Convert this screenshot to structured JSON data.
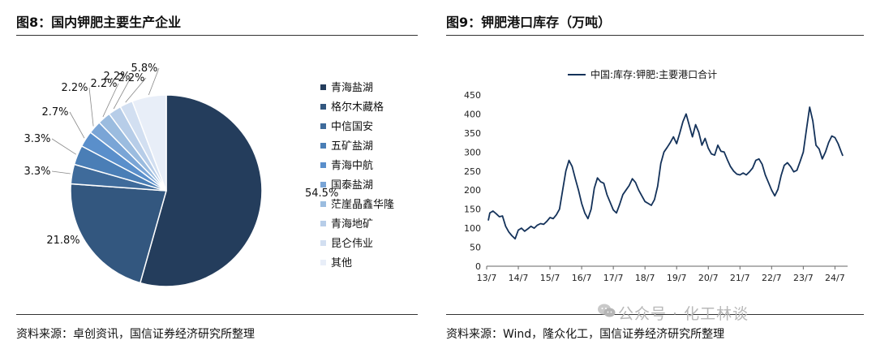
{
  "left": {
    "title": "图8：国内钾肥主要生产企业",
    "source": "资料来源：卓创资讯，国信证券经济研究所整理"
  },
  "right": {
    "title": "图9：钾肥港口库存（万吨）",
    "source": "资料来源：Wind，隆众化工，国信证券经济研究所整理"
  },
  "watermark": "公众号 · 化工林谈",
  "chart_data": [
    {
      "type": "pie",
      "title": "国内钾肥主要生产企业",
      "labels": [
        "青海盐湖",
        "格尔木藏格",
        "中信国安",
        "五矿盐湖",
        "青海中航",
        "国泰盐湖",
        "茫崖晶鑫华隆",
        "青海地矿",
        "昆仑伟业",
        "其他"
      ],
      "values": [
        54.5,
        21.8,
        3.3,
        3.3,
        2.7,
        2.2,
        2.2,
        2.2,
        2.2,
        5.8
      ],
      "value_labels": [
        "54.5%",
        "21.8%",
        "3.3%",
        "3.3%",
        "2.7%",
        "2.2%",
        "2.2%",
        "2.2%",
        "2.2%",
        "5.8%"
      ],
      "colors": [
        "#243d5c",
        "#33577f",
        "#3f6b9b",
        "#4a7eb6",
        "#5a8fcb",
        "#7aa5d6",
        "#9bbcdf",
        "#b7cde8",
        "#d2dff1",
        "#e8eef8"
      ],
      "legend": "right"
    },
    {
      "type": "line",
      "title": "钾肥港口库存",
      "unit": "万吨",
      "series_name": "中国:库存:钾肥:主要港口合计",
      "color": "#14325a",
      "ylim": [
        0,
        450
      ],
      "yticks": [
        0,
        50,
        100,
        150,
        200,
        250,
        300,
        350,
        400,
        450
      ],
      "xticks": [
        "13/7",
        "14/7",
        "15/7",
        "16/7",
        "17/7",
        "18/7",
        "19/7",
        "20/7",
        "21/7",
        "22/7",
        "23/7",
        "24/7"
      ],
      "xrange": [
        2013.5,
        2024.9
      ],
      "legend": "top",
      "points": [
        [
          2013.55,
          120
        ],
        [
          2013.6,
          140
        ],
        [
          2013.7,
          145
        ],
        [
          2013.8,
          138
        ],
        [
          2013.9,
          130
        ],
        [
          2014.0,
          132
        ],
        [
          2014.1,
          105
        ],
        [
          2014.2,
          90
        ],
        [
          2014.3,
          80
        ],
        [
          2014.4,
          72
        ],
        [
          2014.5,
          95
        ],
        [
          2014.6,
          100
        ],
        [
          2014.7,
          92
        ],
        [
          2014.8,
          98
        ],
        [
          2014.9,
          105
        ],
        [
          2015.0,
          100
        ],
        [
          2015.1,
          108
        ],
        [
          2015.2,
          112
        ],
        [
          2015.3,
          110
        ],
        [
          2015.4,
          118
        ],
        [
          2015.5,
          128
        ],
        [
          2015.6,
          125
        ],
        [
          2015.7,
          135
        ],
        [
          2015.8,
          150
        ],
        [
          2015.9,
          200
        ],
        [
          2016.0,
          250
        ],
        [
          2016.1,
          278
        ],
        [
          2016.2,
          262
        ],
        [
          2016.3,
          230
        ],
        [
          2016.4,
          200
        ],
        [
          2016.5,
          165
        ],
        [
          2016.6,
          140
        ],
        [
          2016.7,
          125
        ],
        [
          2016.8,
          150
        ],
        [
          2016.9,
          205
        ],
        [
          2017.0,
          232
        ],
        [
          2017.1,
          222
        ],
        [
          2017.2,
          218
        ],
        [
          2017.3,
          188
        ],
        [
          2017.4,
          168
        ],
        [
          2017.5,
          148
        ],
        [
          2017.6,
          140
        ],
        [
          2017.7,
          162
        ],
        [
          2017.8,
          188
        ],
        [
          2017.9,
          200
        ],
        [
          2018.0,
          212
        ],
        [
          2018.1,
          230
        ],
        [
          2018.2,
          220
        ],
        [
          2018.3,
          200
        ],
        [
          2018.4,
          185
        ],
        [
          2018.5,
          170
        ],
        [
          2018.6,
          165
        ],
        [
          2018.7,
          160
        ],
        [
          2018.8,
          175
        ],
        [
          2018.9,
          210
        ],
        [
          2019.0,
          270
        ],
        [
          2019.1,
          300
        ],
        [
          2019.2,
          312
        ],
        [
          2019.3,
          325
        ],
        [
          2019.4,
          340
        ],
        [
          2019.5,
          322
        ],
        [
          2019.6,
          350
        ],
        [
          2019.7,
          380
        ],
        [
          2019.8,
          400
        ],
        [
          2019.9,
          370
        ],
        [
          2020.0,
          340
        ],
        [
          2020.1,
          372
        ],
        [
          2020.2,
          352
        ],
        [
          2020.3,
          318
        ],
        [
          2020.4,
          336
        ],
        [
          2020.5,
          310
        ],
        [
          2020.6,
          295
        ],
        [
          2020.7,
          292
        ],
        [
          2020.8,
          318
        ],
        [
          2020.9,
          302
        ],
        [
          2021.0,
          300
        ],
        [
          2021.1,
          280
        ],
        [
          2021.2,
          262
        ],
        [
          2021.3,
          250
        ],
        [
          2021.4,
          242
        ],
        [
          2021.5,
          240
        ],
        [
          2021.6,
          245
        ],
        [
          2021.7,
          240
        ],
        [
          2021.8,
          248
        ],
        [
          2021.9,
          258
        ],
        [
          2022.0,
          278
        ],
        [
          2022.1,
          282
        ],
        [
          2022.2,
          268
        ],
        [
          2022.3,
          240
        ],
        [
          2022.4,
          220
        ],
        [
          2022.5,
          200
        ],
        [
          2022.6,
          185
        ],
        [
          2022.7,
          202
        ],
        [
          2022.8,
          238
        ],
        [
          2022.9,
          265
        ],
        [
          2023.0,
          272
        ],
        [
          2023.1,
          262
        ],
        [
          2023.2,
          248
        ],
        [
          2023.3,
          252
        ],
        [
          2023.4,
          275
        ],
        [
          2023.5,
          300
        ],
        [
          2023.6,
          360
        ],
        [
          2023.7,
          418
        ],
        [
          2023.8,
          382
        ],
        [
          2023.9,
          318
        ],
        [
          2024.0,
          308
        ],
        [
          2024.1,
          282
        ],
        [
          2024.2,
          300
        ],
        [
          2024.3,
          325
        ],
        [
          2024.4,
          342
        ],
        [
          2024.5,
          338
        ],
        [
          2024.6,
          322
        ],
        [
          2024.7,
          300
        ],
        [
          2024.75,
          290
        ]
      ]
    }
  ]
}
